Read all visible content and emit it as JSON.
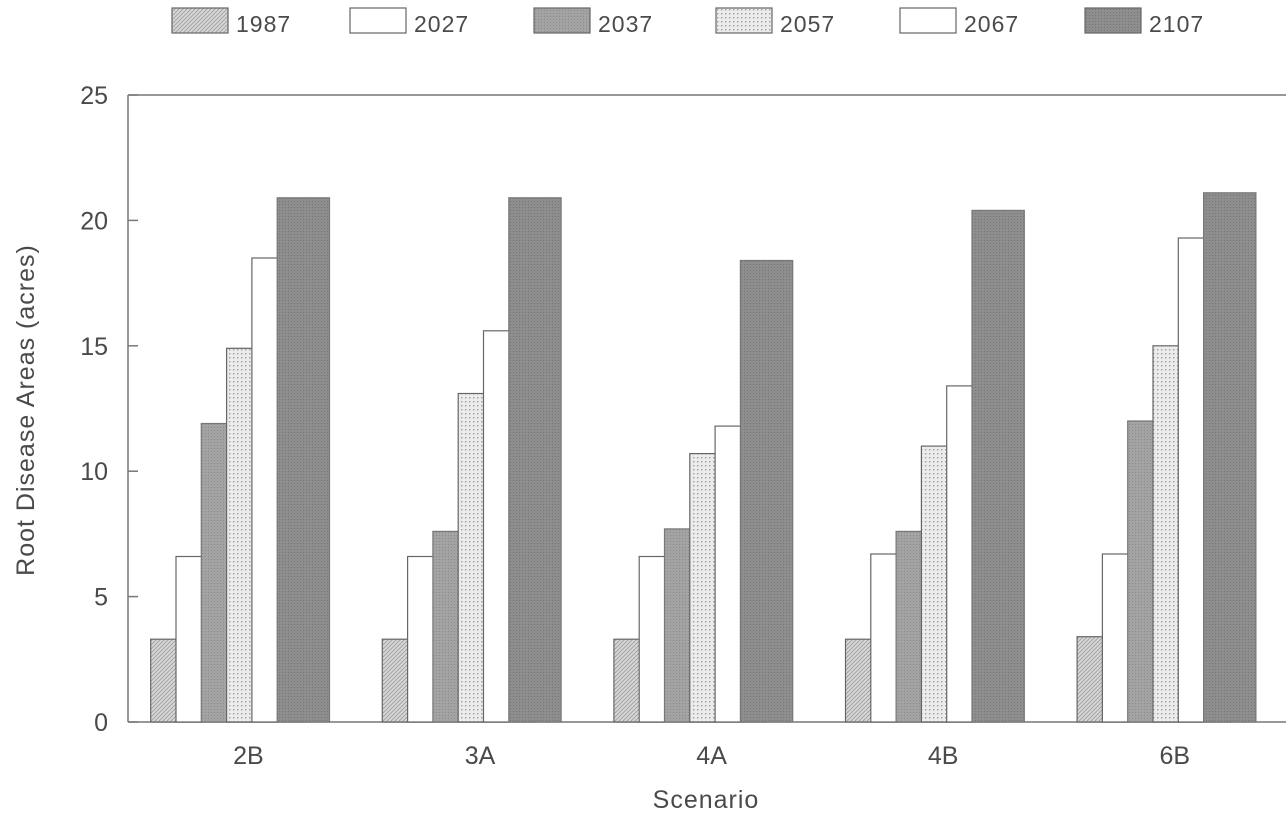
{
  "chart_data": {
    "type": "bar",
    "title": "",
    "xlabel": "Scenario",
    "ylabel": "Root Disease Areas (acres)",
    "categories": [
      "2B",
      "3A",
      "4A",
      "4B",
      "6B"
    ],
    "ylim": [
      0,
      25
    ],
    "yticks": [
      "0",
      "5",
      "10",
      "15",
      "20",
      "25"
    ],
    "legend_position": "top",
    "grid": false,
    "series": [
      {
        "name": "1987",
        "values": [
          3.3,
          3.3,
          3.3,
          3.3,
          3.4
        ],
        "color": "#d2d2d2",
        "pattern": "crosshatch"
      },
      {
        "name": "2027",
        "values": [
          6.6,
          6.6,
          6.6,
          6.7,
          6.7
        ],
        "color": "#ffffff",
        "pattern": "none"
      },
      {
        "name": "2037",
        "values": [
          11.9,
          7.6,
          7.7,
          7.6,
          12.0
        ],
        "color": "#9c9c9c",
        "pattern": "solid"
      },
      {
        "name": "2057",
        "values": [
          14.9,
          13.1,
          10.7,
          11.0,
          15.0
        ],
        "color": "#e2e2e2",
        "pattern": "dots"
      },
      {
        "name": "2067",
        "values": [
          18.5,
          15.6,
          11.8,
          13.4,
          19.3
        ],
        "color": "#ffffff",
        "pattern": "none"
      },
      {
        "name": "2107",
        "values": [
          20.9,
          20.9,
          18.4,
          20.4,
          21.1
        ],
        "color": "#8d8d8d",
        "pattern": "solid"
      }
    ]
  }
}
